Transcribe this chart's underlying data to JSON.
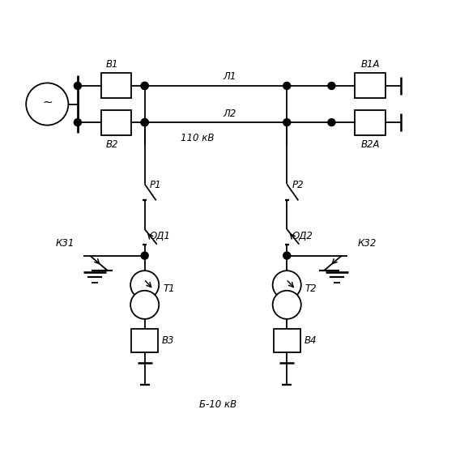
{
  "bg_color": "#ffffff",
  "lw": 1.3,
  "fig_w": 5.68,
  "fig_h": 5.63,
  "dpi": 100,
  "xlim": [
    0,
    11.0
  ],
  "ylim": [
    0,
    11.0
  ]
}
